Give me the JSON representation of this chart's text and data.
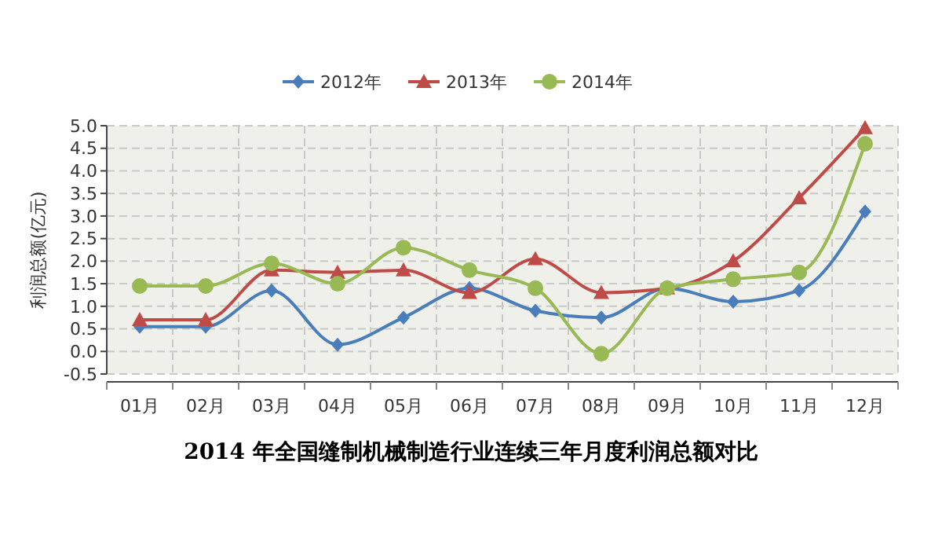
{
  "chart_data": {
    "type": "line",
    "title": "2014 年全国缝制机械制造行业连续三年月度利润总额对比",
    "ylabel": "利润总额(亿元)",
    "categories": [
      "01月",
      "02月",
      "03月",
      "04月",
      "05月",
      "06月",
      "07月",
      "08月",
      "09月",
      "10月",
      "11月",
      "12月"
    ],
    "ylim": [
      -0.5,
      5.0
    ],
    "yticks": [
      {
        "value": -0.5,
        "label": "-0.5"
      },
      {
        "value": 0,
        "label": "0.0"
      },
      {
        "value": 0.5,
        "label": "0.5"
      },
      {
        "value": 1,
        "label": "1.0"
      },
      {
        "value": 1.5,
        "label": "1.5"
      },
      {
        "value": 2,
        "label": "2.0"
      },
      {
        "value": 2.5,
        "label": "2.5"
      },
      {
        "value": 3,
        "label": "3.0"
      },
      {
        "value": 3.5,
        "label": "3.5"
      },
      {
        "value": 4,
        "label": "4.0"
      },
      {
        "value": 4.5,
        "label": "4.5"
      },
      {
        "value": 5,
        "label": "5.0"
      }
    ],
    "grid": true,
    "legend": "top",
    "line_style": "solid",
    "series": [
      {
        "name": "2012年",
        "color": "#4a7ebb",
        "marker": "diamond",
        "values": [
          0.55,
          0.55,
          1.35,
          0.15,
          0.75,
          1.4,
          0.9,
          0.75,
          1.4,
          1.1,
          1.35,
          3.1
        ]
      },
      {
        "name": "2013年",
        "color": "#be4b48",
        "marker": "triangle",
        "values": [
          0.7,
          0.7,
          1.8,
          1.75,
          1.8,
          1.3,
          2.05,
          1.3,
          1.4,
          2.0,
          3.4,
          4.95
        ]
      },
      {
        "name": "2014年",
        "color": "#98b954",
        "marker": "circle",
        "values": [
          1.45,
          1.45,
          1.95,
          1.5,
          2.3,
          1.8,
          1.4,
          -0.05,
          1.4,
          1.6,
          1.75,
          4.6
        ]
      }
    ]
  }
}
